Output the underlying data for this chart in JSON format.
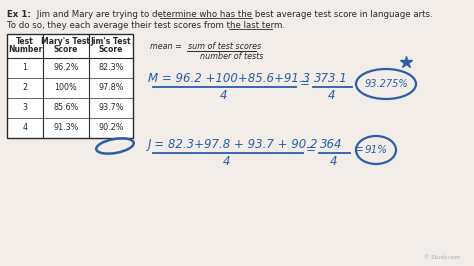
{
  "bg_color": "#f2ede8",
  "text_color": "#2a2a2a",
  "blue_color": "#2a5fa8",
  "table_border": "#2a2a2a",
  "circle_color": "#2a5fa8",
  "star_color": "#2a5fa8",
  "watermark_color": "#aaaaaa",
  "ex1_bold": "Ex 1:",
  "ex1_rest": " Jim and Mary are trying to determine who has the best average test score in language arts.",
  "ex1_line2": "To do so, they each average their test scores from the last term.",
  "underline1_text": "average test score",
  "underline2_text": "last term",
  "table_headers": [
    "Test\nNumber",
    "Mary's Test\nScore",
    "Jim's Test\nScore"
  ],
  "table_data": [
    [
      "1",
      "96.2%",
      "82.3%"
    ],
    [
      "2",
      "100%",
      "97.8%"
    ],
    [
      "3",
      "85.6%",
      "93.7%"
    ],
    [
      "4",
      "91.3%",
      "90.2%"
    ]
  ],
  "mean_label": "mean =",
  "mean_numer": "sum of test scores",
  "mean_denom": "number of tests",
  "mary_lhs_numer": "M = 96.2 +100+85.6+91.3",
  "mary_lhs_denom": "4",
  "mary_rhs_numer": "373.1",
  "mary_rhs_denom": "4",
  "mary_result": "93.275%",
  "jim_lhs_numer": "J = 82.3+97.8 + 93.7 + 90.2",
  "jim_lhs_denom": "4",
  "jim_rhs_numer": "364",
  "jim_rhs_denom": "4",
  "jim_result": "91%",
  "watermark": "Study.com"
}
